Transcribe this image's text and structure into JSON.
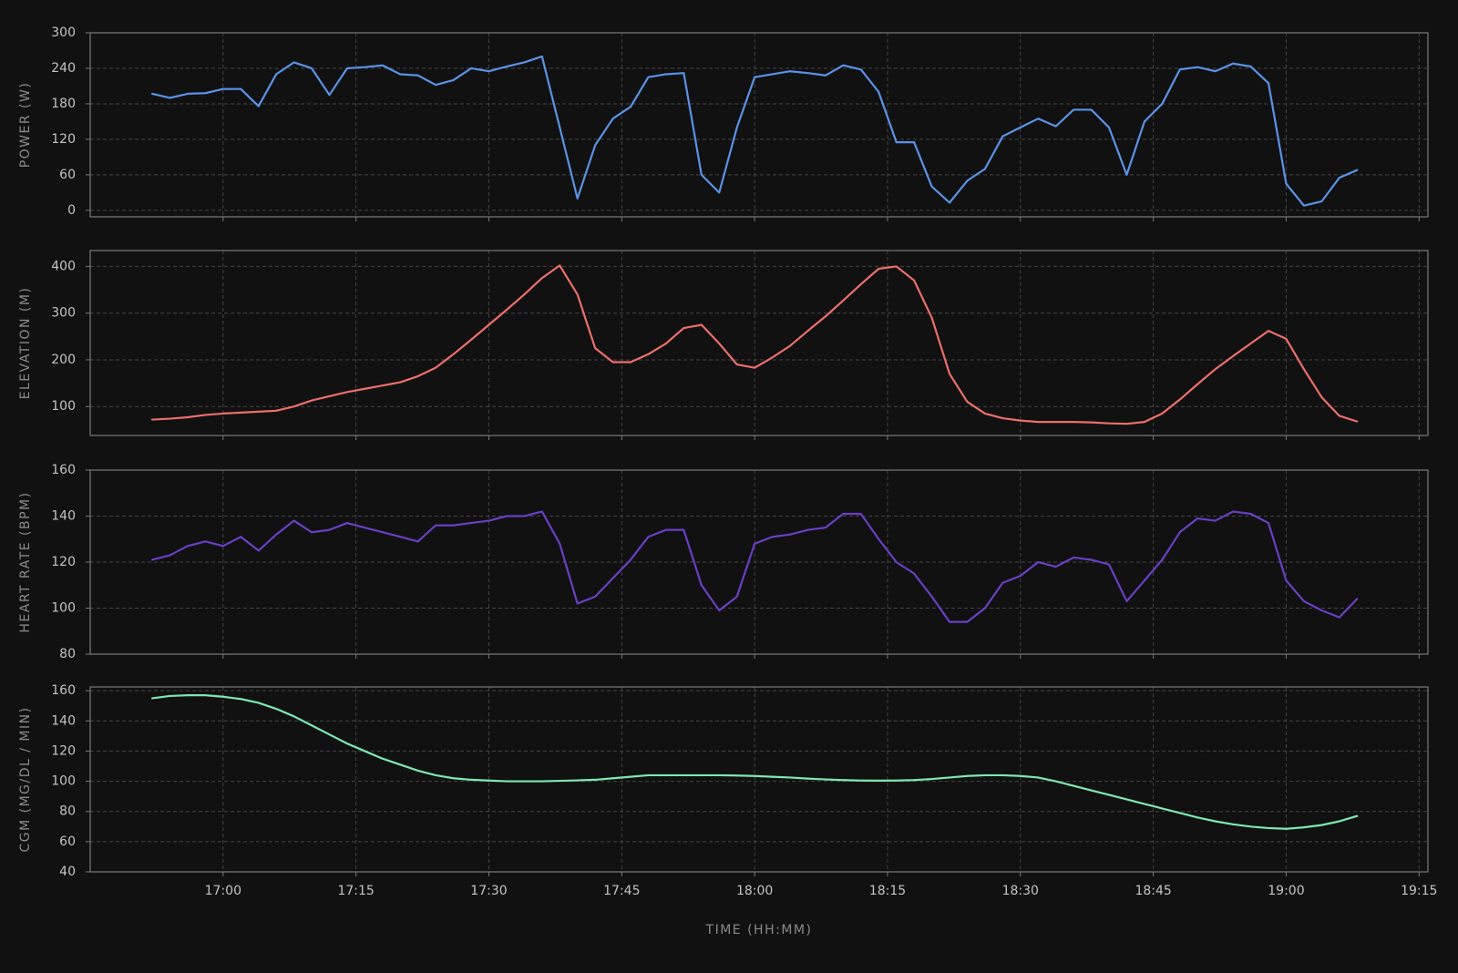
{
  "chart_data": [
    {
      "type": "line",
      "ylabel": "POWER (W)",
      "color": "#5b93e6",
      "grid": true,
      "xlim": [
        "16:45",
        "19:16"
      ],
      "xticks": [
        "17:00",
        "17:15",
        "17:30",
        "17:45",
        "18:00",
        "18:15",
        "18:30",
        "18:45",
        "19:00",
        "19:15"
      ],
      "ylim": [
        -11,
        300
      ],
      "yticks": [
        0,
        60,
        120,
        180,
        240,
        300
      ],
      "x": [
        "16:52",
        "16:54",
        "16:56",
        "16:58",
        "17:00",
        "17:02",
        "17:04",
        "17:06",
        "17:08",
        "17:10",
        "17:12",
        "17:14",
        "17:16",
        "17:18",
        "17:20",
        "17:22",
        "17:24",
        "17:26",
        "17:28",
        "17:30",
        "17:32",
        "17:34",
        "17:36",
        "17:38",
        "17:40",
        "17:42",
        "17:44",
        "17:46",
        "17:48",
        "17:50",
        "17:52",
        "17:54",
        "17:56",
        "17:58",
        "18:00",
        "18:02",
        "18:04",
        "18:06",
        "18:08",
        "18:10",
        "18:12",
        "18:14",
        "18:16",
        "18:18",
        "18:20",
        "18:22",
        "18:24",
        "18:26",
        "18:28",
        "18:30",
        "18:32",
        "18:34",
        "18:36",
        "18:38",
        "18:40",
        "18:42",
        "18:44",
        "18:46",
        "18:48",
        "18:50",
        "18:52",
        "18:54",
        "18:56",
        "18:58",
        "19:00",
        "19:02",
        "19:04",
        "19:06",
        "19:08"
      ],
      "values": [
        197,
        190,
        197,
        198,
        205,
        205,
        176,
        230,
        250,
        240,
        195,
        240,
        242,
        245,
        230,
        228,
        212,
        220,
        240,
        235,
        243,
        250,
        260,
        140,
        20,
        110,
        155,
        175,
        225,
        230,
        232,
        60,
        30,
        140,
        225,
        230,
        235,
        232,
        228,
        245,
        238,
        200,
        115,
        115,
        40,
        13,
        50,
        70,
        125,
        140,
        155,
        142,
        170,
        170,
        140,
        60,
        150,
        180,
        238,
        242,
        235,
        248,
        243,
        215,
        45,
        8,
        15,
        55,
        68
      ]
    },
    {
      "type": "line",
      "ylabel": "ELEVATION (M)",
      "color": "#ec6f6b",
      "grid": true,
      "xlim": [
        "16:45",
        "19:16"
      ],
      "xticks": [
        "17:00",
        "17:15",
        "17:30",
        "17:45",
        "18:00",
        "18:15",
        "18:30",
        "18:45",
        "19:00",
        "19:15"
      ],
      "ylim": [
        38,
        434
      ],
      "yticks": [
        100,
        200,
        300,
        400
      ],
      "x": [
        "16:52",
        "16:54",
        "16:56",
        "16:58",
        "17:00",
        "17:02",
        "17:04",
        "17:06",
        "17:08",
        "17:10",
        "17:12",
        "17:14",
        "17:16",
        "17:18",
        "17:20",
        "17:22",
        "17:24",
        "17:26",
        "17:28",
        "17:30",
        "17:32",
        "17:34",
        "17:36",
        "17:38",
        "17:40",
        "17:42",
        "17:44",
        "17:46",
        "17:48",
        "17:50",
        "17:52",
        "17:54",
        "17:56",
        "17:58",
        "18:00",
        "18:02",
        "18:04",
        "18:06",
        "18:08",
        "18:10",
        "18:12",
        "18:14",
        "18:16",
        "18:18",
        "18:20",
        "18:22",
        "18:24",
        "18:26",
        "18:28",
        "18:30",
        "18:32",
        "18:34",
        "18:36",
        "18:38",
        "18:40",
        "18:42",
        "18:44",
        "18:46",
        "18:48",
        "18:50",
        "18:52",
        "18:54",
        "18:56",
        "18:58",
        "19:00",
        "19:02",
        "19:04",
        "19:06",
        "19:08"
      ],
      "values": [
        72,
        74,
        77,
        82,
        85,
        87,
        89,
        91,
        100,
        113,
        122,
        131,
        138,
        145,
        152,
        165,
        183,
        212,
        243,
        275,
        307,
        340,
        375,
        402,
        340,
        225,
        195,
        195,
        212,
        235,
        268,
        275,
        235,
        190,
        183,
        205,
        230,
        262,
        293,
        327,
        362,
        395,
        400,
        370,
        290,
        170,
        110,
        85,
        75,
        70,
        67,
        67,
        67,
        66,
        64,
        63,
        67,
        85,
        115,
        148,
        180,
        208,
        235,
        262,
        245,
        180,
        120,
        80,
        68
      ]
    },
    {
      "type": "line",
      "ylabel": "HEART RATE (BPM)",
      "color": "#6a3fc4",
      "grid": true,
      "xlim": [
        "16:45",
        "19:16"
      ],
      "xticks": [
        "17:00",
        "17:15",
        "17:30",
        "17:45",
        "18:00",
        "18:15",
        "18:30",
        "18:45",
        "19:00",
        "19:15"
      ],
      "ylim": [
        80,
        160
      ],
      "yticks": [
        80,
        100,
        120,
        140,
        160
      ],
      "x": [
        "16:52",
        "16:54",
        "16:56",
        "16:58",
        "17:00",
        "17:02",
        "17:04",
        "17:06",
        "17:08",
        "17:10",
        "17:12",
        "17:14",
        "17:16",
        "17:18",
        "17:20",
        "17:22",
        "17:24",
        "17:26",
        "17:28",
        "17:30",
        "17:32",
        "17:34",
        "17:36",
        "17:38",
        "17:40",
        "17:42",
        "17:44",
        "17:46",
        "17:48",
        "17:50",
        "17:52",
        "17:54",
        "17:56",
        "17:58",
        "18:00",
        "18:02",
        "18:04",
        "18:06",
        "18:08",
        "18:10",
        "18:12",
        "18:14",
        "18:16",
        "18:18",
        "18:20",
        "18:22",
        "18:24",
        "18:26",
        "18:28",
        "18:30",
        "18:32",
        "18:34",
        "18:36",
        "18:38",
        "18:40",
        "18:42",
        "18:44",
        "18:46",
        "18:48",
        "18:50",
        "18:52",
        "18:54",
        "18:56",
        "18:58",
        "19:00",
        "19:02",
        "19:04",
        "19:06",
        "19:08"
      ],
      "values": [
        121,
        123,
        127,
        129,
        127,
        131,
        125,
        132,
        138,
        133,
        134,
        137,
        135,
        133,
        131,
        129,
        136,
        136,
        137,
        138,
        140,
        140,
        142,
        128,
        102,
        105,
        113,
        121,
        131,
        134,
        134,
        110,
        99,
        105,
        128,
        131,
        132,
        134,
        135,
        141,
        141,
        130,
        120,
        115,
        105,
        94,
        94,
        100,
        111,
        114,
        120,
        118,
        122,
        121,
        119,
        103,
        112,
        121,
        133,
        139,
        138,
        142,
        141,
        137,
        112,
        103,
        99,
        96,
        104
      ]
    },
    {
      "type": "line",
      "ylabel": "CGM (MG/DL / MIN)",
      "xlabel": "TIME (HH:MM)",
      "color": "#7ee8b0",
      "grid": true,
      "xlim": [
        "16:45",
        "19:16"
      ],
      "xticks": [
        "17:00",
        "17:15",
        "17:30",
        "17:45",
        "18:00",
        "18:15",
        "18:30",
        "18:45",
        "19:00",
        "19:15"
      ],
      "ylim": [
        40,
        162.5
      ],
      "yticks": [
        40,
        60,
        80,
        100,
        120,
        140,
        160
      ],
      "x": [
        "16:52",
        "16:54",
        "16:56",
        "16:58",
        "17:00",
        "17:02",
        "17:04",
        "17:06",
        "17:08",
        "17:10",
        "17:12",
        "17:14",
        "17:16",
        "17:18",
        "17:20",
        "17:22",
        "17:24",
        "17:26",
        "17:28",
        "17:30",
        "17:32",
        "17:34",
        "17:36",
        "17:38",
        "17:40",
        "17:42",
        "17:44",
        "17:46",
        "17:48",
        "17:50",
        "17:52",
        "17:54",
        "17:56",
        "17:58",
        "18:00",
        "18:02",
        "18:04",
        "18:06",
        "18:08",
        "18:10",
        "18:12",
        "18:14",
        "18:16",
        "18:18",
        "18:20",
        "18:22",
        "18:24",
        "18:26",
        "18:28",
        "18:30",
        "18:32",
        "18:34",
        "18:36",
        "18:38",
        "18:40",
        "18:42",
        "18:44",
        "18:46",
        "18:48",
        "18:50",
        "18:52",
        "18:54",
        "18:56",
        "18:58",
        "19:00",
        "19:02",
        "19:04",
        "19:06",
        "19:08"
      ],
      "values": [
        155,
        156.5,
        157,
        157,
        156,
        154.5,
        152,
        148,
        143,
        137,
        131,
        125,
        120,
        115,
        111,
        107,
        104,
        102,
        101,
        100.5,
        100,
        100,
        100,
        100.3,
        100.6,
        101,
        102,
        103,
        104,
        104,
        104,
        104,
        104,
        103.8,
        103.5,
        103,
        102.5,
        101.8,
        101.2,
        100.8,
        100.5,
        100.4,
        100.5,
        100.8,
        101.5,
        102.5,
        103.5,
        104,
        104,
        103.5,
        102.5,
        100,
        97,
        94,
        91,
        88,
        85,
        82,
        79,
        76,
        73.5,
        71.5,
        70,
        69,
        68.5,
        69.5,
        71,
        73.5,
        77
      ]
    }
  ]
}
